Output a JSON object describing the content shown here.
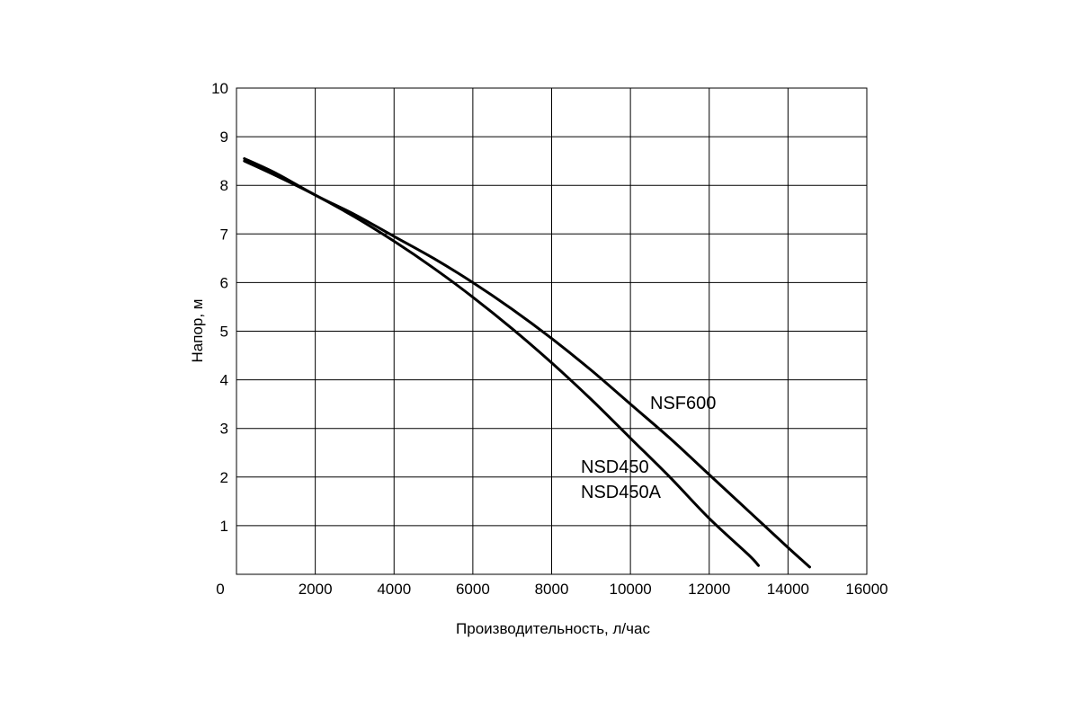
{
  "chart_data": {
    "type": "line",
    "title": "",
    "xlabel": "Производительность, л/час",
    "ylabel": "Напор, м",
    "xlim": [
      0,
      16000
    ],
    "ylim": [
      0,
      10
    ],
    "x_ticks": [
      0,
      2000,
      4000,
      6000,
      8000,
      10000,
      12000,
      14000,
      16000
    ],
    "x_tick_labels": [
      "0",
      "2000",
      "4000",
      "6000",
      "8000",
      "10000",
      "12000",
      "14000",
      "16000"
    ],
    "y_ticks": [
      1,
      2,
      3,
      4,
      5,
      6,
      7,
      8,
      9,
      10
    ],
    "y_tick_labels": [
      "1",
      "2",
      "3",
      "4",
      "5",
      "6",
      "7",
      "8",
      "9",
      "10"
    ],
    "grid": true,
    "legend": "none",
    "series": [
      {
        "name": "NSF600",
        "color": "#000000",
        "x": [
          200,
          1000,
          2000,
          3000,
          4000,
          5000,
          6000,
          7000,
          8000,
          9000,
          10000,
          11000,
          12000,
          13000,
          14000,
          14550
        ],
        "y": [
          8.55,
          8.25,
          7.8,
          7.4,
          6.95,
          6.5,
          6.0,
          5.45,
          4.85,
          4.2,
          3.5,
          2.8,
          2.05,
          1.3,
          0.55,
          0.15
        ]
      },
      {
        "name": "NSD450\nNSD450A",
        "color": "#000000",
        "x": [
          200,
          1000,
          2000,
          3000,
          4000,
          5000,
          6000,
          7000,
          8000,
          9000,
          10000,
          11000,
          12000,
          13000,
          13250
        ],
        "y": [
          8.5,
          8.2,
          7.8,
          7.35,
          6.85,
          6.3,
          5.7,
          5.05,
          4.35,
          3.6,
          2.8,
          2.0,
          1.15,
          0.4,
          0.18
        ]
      }
    ],
    "annotations": [
      "NSF600",
      "NSD450",
      "NSD450A"
    ]
  }
}
